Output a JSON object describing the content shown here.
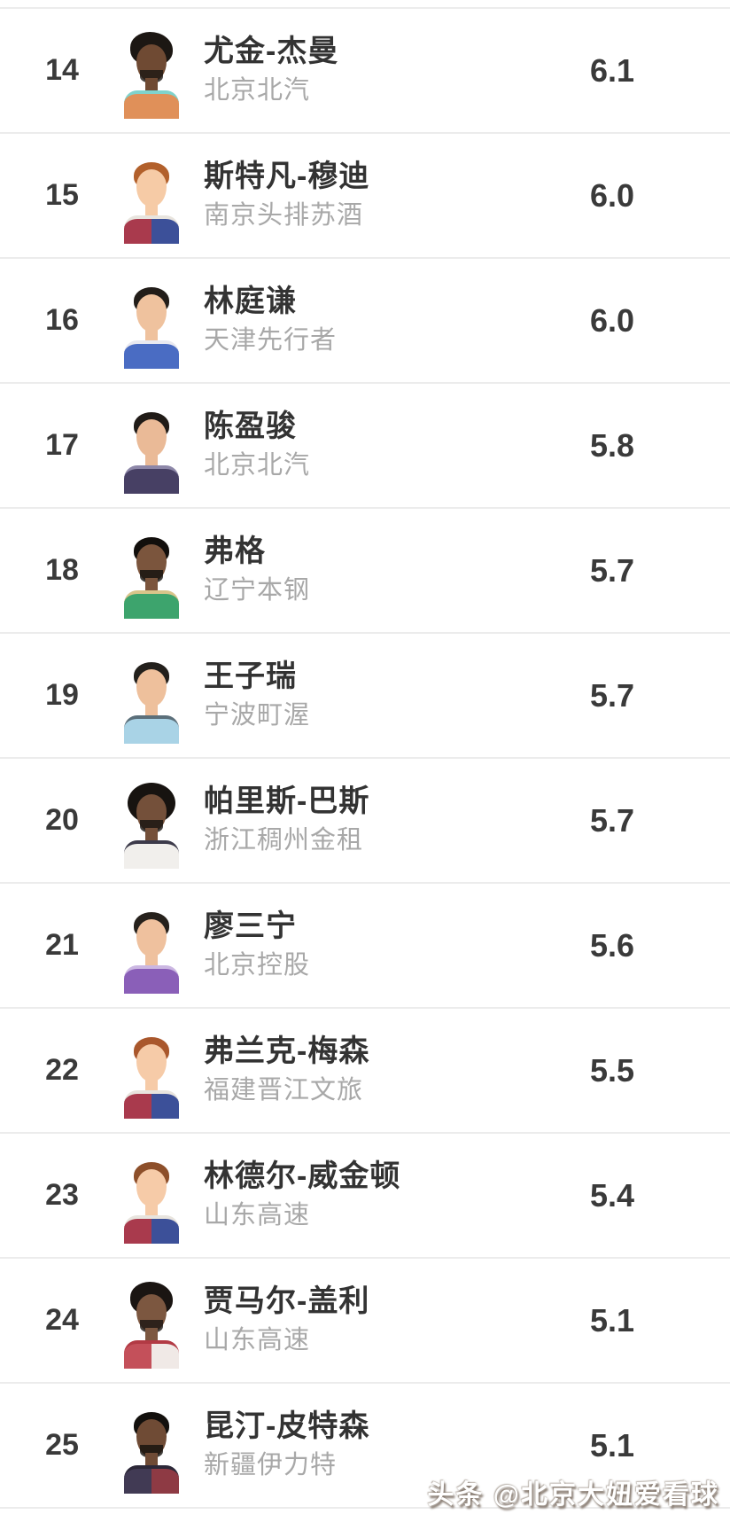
{
  "page": {
    "type": "basketball-player-stat-ranking-list",
    "visible_rank_range": "14-25"
  },
  "colors": {
    "background": "#ffffff",
    "divider": "#ececec",
    "primary_text": "#3a3a3a",
    "secondary_text": "#a8a8a8",
    "watermark_text": "#ffffff"
  },
  "players": [
    {
      "rank": "14",
      "name": "尤金-杰曼",
      "team": "北京北汽",
      "value": "6.1",
      "avatar": {
        "skin": "#6f4a33",
        "hair": "#1c1713",
        "hair_style": "curly",
        "beard": true,
        "jersey": "#e09059",
        "jersey2": "#e09059",
        "trim": "#7fd3cc"
      }
    },
    {
      "rank": "15",
      "name": "斯特凡-穆迪",
      "team": "南京头排苏酒",
      "value": "6.0",
      "avatar": {
        "skin": "#f6cba6",
        "hair": "#b2602b",
        "hair_style": "short",
        "beard": false,
        "jersey": "#a93a4d",
        "jersey2": "#3c5099",
        "trim": "#e8e4de"
      }
    },
    {
      "rank": "16",
      "name": "林庭谦",
      "team": "天津先行者",
      "value": "6.0",
      "avatar": {
        "skin": "#efc29e",
        "hair": "#221d19",
        "hair_style": "short",
        "beard": false,
        "jersey": "#4a6cc3",
        "jersey2": "#4a6cc3",
        "trim": "#e9e9f0"
      }
    },
    {
      "rank": "17",
      "name": "陈盈骏",
      "team": "北京北汽",
      "value": "5.8",
      "avatar": {
        "skin": "#eaba97",
        "hair": "#201b17",
        "hair_style": "short",
        "beard": false,
        "jersey": "#474064",
        "jersey2": "#474064",
        "trim": "#8d87a8"
      }
    },
    {
      "rank": "18",
      "name": "弗格",
      "team": "辽宁本钢",
      "value": "5.7",
      "avatar": {
        "skin": "#7b553d",
        "hair": "#120f0c",
        "hair_style": "short",
        "beard": true,
        "jersey": "#3da46d",
        "jersey2": "#3da46d",
        "trim": "#d9c48a"
      }
    },
    {
      "rank": "19",
      "name": "王子瑞",
      "team": "宁波町渥",
      "value": "5.7",
      "avatar": {
        "skin": "#eec09c",
        "hair": "#23201c",
        "hair_style": "short",
        "beard": false,
        "jersey": "#a9d3e6",
        "jersey2": "#a9d3e6",
        "trim": "#5b6f7a"
      }
    },
    {
      "rank": "20",
      "name": "帕里斯-巴斯",
      "team": "浙江稠州金租",
      "value": "5.7",
      "avatar": {
        "skin": "#74503a",
        "hair": "#171310",
        "hair_style": "afro",
        "beard": true,
        "jersey": "#f1efec",
        "jersey2": "#f1efec",
        "trim": "#3c3a4a"
      }
    },
    {
      "rank": "21",
      "name": "廖三宁",
      "team": "北京控股",
      "value": "5.6",
      "avatar": {
        "skin": "#efc19e",
        "hair": "#26211c",
        "hair_style": "short",
        "beard": false,
        "jersey": "#8a5fb8",
        "jersey2": "#8a5fb8",
        "trim": "#cbb7e2"
      }
    },
    {
      "rank": "22",
      "name": "弗兰克-梅森",
      "team": "福建晋江文旅",
      "value": "5.5",
      "avatar": {
        "skin": "#f6cba8",
        "hair": "#a9572c",
        "hair_style": "short",
        "beard": false,
        "jersey": "#a93a4d",
        "jersey2": "#3c5099",
        "trim": "#e8e4de"
      }
    },
    {
      "rank": "23",
      "name": "林德尔-威金顿",
      "team": "山东高速",
      "value": "5.4",
      "avatar": {
        "skin": "#f6cba8",
        "hair": "#8d4f2a",
        "hair_style": "short",
        "beard": false,
        "jersey": "#a93a4d",
        "jersey2": "#3c5099",
        "trim": "#e8e4de"
      }
    },
    {
      "rank": "24",
      "name": "贾马尔-盖利",
      "team": "山东高速",
      "value": "5.1",
      "avatar": {
        "skin": "#7c5740",
        "hair": "#1a1512",
        "hair_style": "curly",
        "beard": true,
        "jersey": "#c4505a",
        "jersey2": "#f0e9e6",
        "trim": "#b23a44"
      }
    },
    {
      "rank": "25",
      "name": "昆汀-皮特森",
      "team": "新疆伊力特",
      "value": "5.1",
      "avatar": {
        "skin": "#6f4b35",
        "hair": "#13100d",
        "hair_style": "short",
        "beard": true,
        "jersey": "#413a54",
        "jersey2": "#8e3a44",
        "trim": "#2c2838"
      }
    }
  ],
  "watermark": {
    "text": "头条 @北京大妞爱看球"
  }
}
